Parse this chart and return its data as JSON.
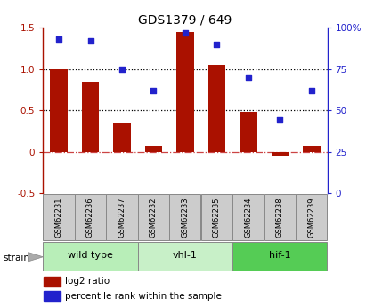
{
  "title": "GDS1379 / 649",
  "samples": [
    "GSM62231",
    "GSM62236",
    "GSM62237",
    "GSM62232",
    "GSM62233",
    "GSM62235",
    "GSM62234",
    "GSM62238",
    "GSM62239"
  ],
  "log2_ratio": [
    1.0,
    0.85,
    0.35,
    0.07,
    1.45,
    1.05,
    0.48,
    -0.05,
    0.07
  ],
  "pct_rank": [
    93,
    92,
    75,
    62,
    97,
    90,
    70,
    45,
    62
  ],
  "groups": [
    {
      "label": "wild type",
      "start": 0,
      "end": 3,
      "color": "#b8eeb8"
    },
    {
      "label": "vhl-1",
      "start": 3,
      "end": 6,
      "color": "#c8f0c8"
    },
    {
      "label": "hif-1",
      "start": 6,
      "end": 9,
      "color": "#55cc55"
    }
  ],
  "bar_color": "#aa1100",
  "dot_color": "#2222cc",
  "ylim_left": [
    -0.5,
    1.5
  ],
  "ylim_right": [
    0,
    100
  ],
  "yticks_left": [
    -0.5,
    0.0,
    0.5,
    1.0,
    1.5
  ],
  "yticks_right": [
    0,
    25,
    50,
    75,
    100
  ],
  "hline_dotted": [
    0.5,
    1.0
  ],
  "hline_dashdot_color": "#cc4444",
  "strain_label": "strain",
  "legend_items": [
    "log2 ratio",
    "percentile rank within the sample"
  ],
  "bar_width": 0.55,
  "sample_box_color": "#cccccc",
  "bg_color": "#ffffff"
}
